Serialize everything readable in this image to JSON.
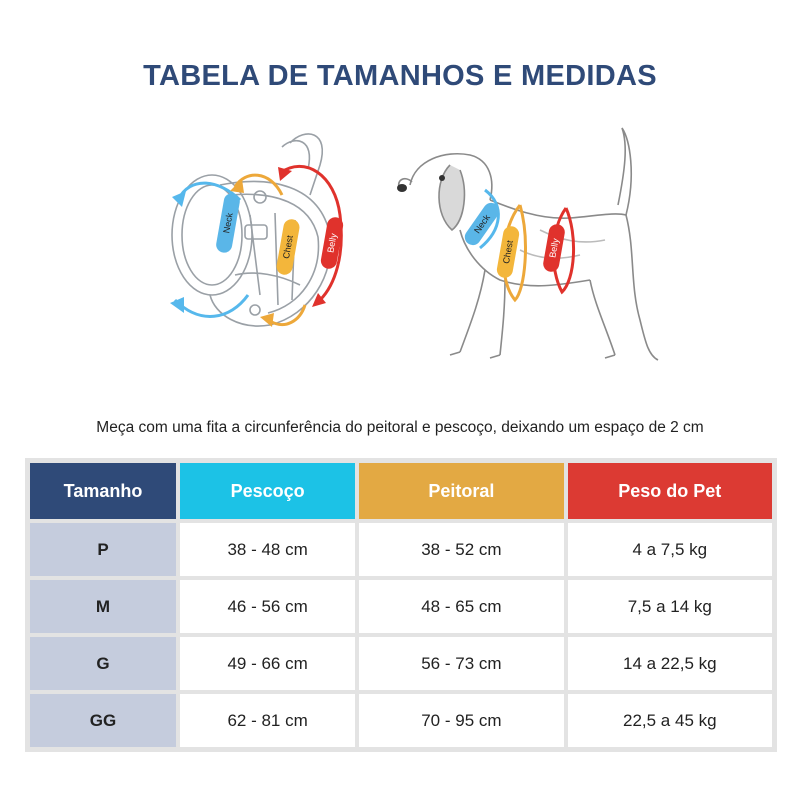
{
  "title": "TABELA DE TAMANHOS E MEDIDAS",
  "labels": {
    "neck": "Neck",
    "chest": "Chest",
    "belly": "Belly"
  },
  "instruction": "Meça com uma fita a circunferência do peitoral e pescoço, deixando um espaço de 2 cm",
  "colors": {
    "title": "#2f4a78",
    "neck": "#1cc2e6",
    "chest": "#e3a943",
    "weight": "#dc3a33",
    "size_col": "#c5ccdd"
  },
  "table": {
    "headers": [
      "Tamanho",
      "Pescoço",
      "Peitoral",
      "Peso do Pet"
    ],
    "rows": [
      [
        "P",
        "38 - 48 cm",
        "38 - 52 cm",
        "4 a 7,5 kg"
      ],
      [
        "M",
        "46 - 56 cm",
        "48 - 65 cm",
        "7,5 a 14 kg"
      ],
      [
        "G",
        "49 - 66 cm",
        "56 - 73 cm",
        "14 a 22,5 kg"
      ],
      [
        "GG",
        "62 - 81 cm",
        "70 - 95 cm",
        "22,5 a 45 kg"
      ]
    ]
  }
}
